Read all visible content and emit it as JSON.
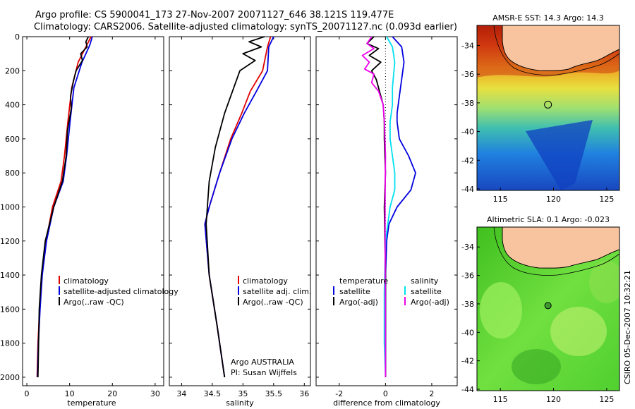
{
  "header": {
    "line1": "Argo profile: CS 5900041_173 27-Nov-2007 20071127_646 38.121S 119.477E",
    "line2": "Climatology: CARS2006. Satellite-adjusted climatology: synTS_20071127.nc (0.093d earlier)"
  },
  "stamp": "CSIRO 05-Dec-2007 10:32:21",
  "colors": {
    "climatology": "#e00000",
    "satellite": "#0000e0",
    "argo": "#000000",
    "sat_salinity": "#00e0f0",
    "argo_salinity": "#f000f0"
  },
  "chart_data": [
    {
      "type": "line",
      "title": "",
      "xlabel": "temperature",
      "ylabel": "",
      "xlim": [
        -1,
        32
      ],
      "ylim": [
        2050,
        0
      ],
      "xticks": [
        0,
        10,
        20,
        30
      ],
      "yticks": [
        0,
        200,
        400,
        600,
        800,
        1000,
        1200,
        1400,
        1600,
        1800,
        2000
      ],
      "legend": [
        "climatology",
        "satellite-adjusted climatology",
        "Argo(..raw -QC)"
      ],
      "series": [
        {
          "name": "climatology",
          "color": "#e00000",
          "x": [
            15.0,
            14.0,
            12.0,
            10.5,
            9.6,
            8.8,
            8.0,
            6.0,
            4.5,
            3.5,
            3.0,
            2.6,
            2.4
          ],
          "y": [
            0,
            50,
            150,
            300,
            500,
            700,
            850,
            1000,
            1200,
            1400,
            1600,
            1800,
            2000
          ]
        },
        {
          "name": "satellite-adjusted climatology",
          "color": "#0000e0",
          "x": [
            15.3,
            14.7,
            12.9,
            11.0,
            10.1,
            9.3,
            8.5,
            6.3,
            4.6,
            3.6,
            3.1,
            2.7,
            2.5
          ],
          "y": [
            0,
            50,
            150,
            300,
            500,
            700,
            850,
            1000,
            1200,
            1400,
            1600,
            1800,
            2000
          ]
        },
        {
          "name": "Argo(..raw -QC)",
          "color": "#000000",
          "x": [
            14.4,
            13.8,
            14.1,
            12.6,
            13.0,
            11.5,
            10.9,
            10.2,
            10.4,
            9.5,
            9.2,
            8.3,
            6.3,
            4.3,
            3.4,
            2.9,
            2.6
          ],
          "y": [
            0,
            30,
            60,
            100,
            140,
            200,
            260,
            350,
            420,
            550,
            700,
            850,
            1000,
            1200,
            1400,
            1600,
            2000
          ]
        }
      ]
    },
    {
      "type": "line",
      "xlabel": "salinity",
      "xlim": [
        33.8,
        36.1
      ],
      "ylim": [
        2050,
        0
      ],
      "xticks": [
        34,
        34.5,
        35,
        35.5,
        36
      ],
      "legend": [
        "climatology",
        "satellite adj. clim.",
        "Argo(..raw -QC)"
      ],
      "annotations": [
        "Argo AUSTRALIA",
        "PI: Susan Wijffels"
      ],
      "series": [
        {
          "name": "climatology",
          "color": "#e00000",
          "x": [
            35.45,
            35.4,
            35.32,
            35.12,
            34.98,
            34.8,
            34.62,
            34.45,
            34.38,
            34.45,
            34.58,
            34.7
          ],
          "y": [
            0,
            60,
            200,
            320,
            450,
            600,
            800,
            1000,
            1100,
            1400,
            1700,
            2000
          ]
        },
        {
          "name": "satellite adj. clim.",
          "color": "#0000e0",
          "x": [
            35.5,
            35.42,
            35.4,
            35.22,
            35.02,
            34.82,
            34.62,
            34.45,
            34.38,
            34.45,
            34.58,
            34.7
          ],
          "y": [
            0,
            60,
            200,
            320,
            450,
            600,
            800,
            1000,
            1100,
            1400,
            1700,
            2000
          ]
        },
        {
          "name": "Argo(..raw -QC)",
          "color": "#000000",
          "x": [
            35.35,
            35.1,
            35.3,
            35.0,
            35.2,
            34.95,
            34.85,
            34.7,
            34.55,
            34.45,
            34.4,
            34.45,
            34.58,
            34.7
          ],
          "y": [
            0,
            30,
            60,
            100,
            140,
            200,
            300,
            450,
            650,
            850,
            1100,
            1400,
            1700,
            2000
          ]
        }
      ]
    },
    {
      "type": "line",
      "xlabel": "difference from climatology",
      "xlim": [
        -3.0,
        3.1
      ],
      "ylim": [
        2050,
        0
      ],
      "xticks": [
        -2,
        0,
        2
      ],
      "legend_temperature_title": "temperature",
      "legend_salinity_title": "salinity",
      "legend_temperature": [
        "satellite",
        "Argo(-adj)"
      ],
      "legend_salinity": [
        "satellite",
        "Argo(-adj)"
      ],
      "series": [
        {
          "name": "temperature satellite",
          "color": "#0000e0",
          "x": [
            0.3,
            0.7,
            0.8,
            0.7,
            0.6,
            0.5,
            0.5,
            0.6,
            1.0,
            1.3,
            1.1,
            0.5,
            0.15,
            0.05,
            0.0,
            0.0,
            0.0
          ],
          "y": [
            0,
            60,
            150,
            250,
            350,
            450,
            500,
            600,
            700,
            800,
            900,
            1000,
            1100,
            1200,
            1400,
            1700,
            2000
          ]
        },
        {
          "name": "salinity satellite",
          "color": "#00e0f0",
          "x": [
            0.05,
            0.3,
            0.4,
            0.3,
            0.3,
            0.2,
            0.2,
            0.3,
            0.4,
            0.4,
            0.2,
            0.0,
            -0.05,
            -0.05,
            0.0
          ],
          "y": [
            0,
            60,
            150,
            300,
            400,
            500,
            600,
            700,
            800,
            900,
            1000,
            1200,
            1500,
            1800,
            2000
          ]
        },
        {
          "name": "temperature Argo(-adj)",
          "color": "#000000",
          "x": [
            -0.5,
            -0.8,
            -0.3,
            -0.7,
            -0.2,
            -0.6,
            -0.4,
            -0.3,
            -0.1,
            -0.05,
            -0.05,
            0.0,
            -0.05,
            0.0,
            0.0
          ],
          "y": [
            0,
            40,
            70,
            110,
            150,
            200,
            250,
            300,
            400,
            500,
            600,
            800,
            1000,
            1400,
            2000
          ]
        },
        {
          "name": "salinity Argo(-adj)",
          "color": "#f000f0",
          "x": [
            -0.6,
            -0.8,
            -0.5,
            -1.0,
            -0.7,
            -0.9,
            -0.5,
            -0.6,
            -0.3,
            -0.1,
            -0.05,
            0.0,
            -0.02,
            0.0
          ],
          "y": [
            0,
            40,
            70,
            110,
            150,
            190,
            220,
            270,
            320,
            400,
            500,
            700,
            1000,
            2000
          ]
        }
      ]
    },
    {
      "type": "heatmap",
      "title": "AMSR-E SST: 14.3 Argo: 14.3",
      "xlim": [
        112.8,
        126.2
      ],
      "ylim": [
        -44.1,
        -32.6
      ],
      "xticks": [
        115,
        120,
        125
      ],
      "yticks": [
        -34,
        -36,
        -38,
        -40,
        -42,
        -44
      ],
      "marker": {
        "lon": 119.477,
        "lat": -38.121
      }
    },
    {
      "type": "heatmap",
      "title": "Altimetric SLA: 0.1 Argo: -0.023",
      "xlim": [
        112.8,
        126.2
      ],
      "ylim": [
        -44.1,
        -32.6
      ],
      "xticks": [
        115,
        120,
        125
      ],
      "yticks": [
        -34,
        -36,
        -38,
        -40,
        -42,
        -44
      ],
      "marker": {
        "lon": 119.477,
        "lat": -38.121
      }
    }
  ]
}
